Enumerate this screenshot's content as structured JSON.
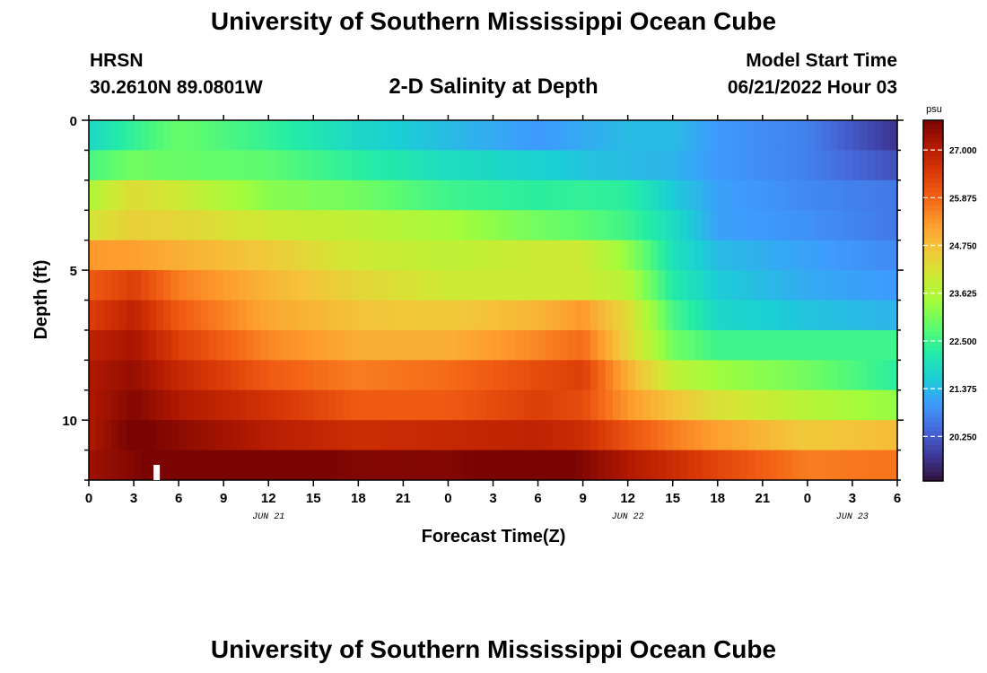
{
  "header": {
    "title": "University of Southern Mississippi Ocean Cube",
    "station": "HRSN",
    "coords": "30.2610N  89.0801W",
    "plot_title": "2-D Salinity at Depth",
    "model_start_label": "Model Start Time",
    "model_start_value": "06/21/2022 Hour 03"
  },
  "footer": {
    "title": "University of Southern Mississippi Ocean Cube"
  },
  "chart_data": {
    "type": "heatmap",
    "title": "2-D Salinity at Depth",
    "xlabel": "Forecast Time(Z)",
    "ylabel": "Depth (ft)",
    "x_hours_range": [
      0,
      54
    ],
    "x_tick_hours": [
      0,
      3,
      6,
      9,
      12,
      15,
      18,
      21,
      24,
      27,
      30,
      33,
      36,
      39,
      42,
      45,
      48,
      51,
      54
    ],
    "x_tick_labels": [
      "0",
      "3",
      "6",
      "9",
      "12",
      "15",
      "18",
      "21",
      "0",
      "3",
      "6",
      "9",
      "12",
      "15",
      "18",
      "21",
      "0",
      "3",
      "6"
    ],
    "date_labels": [
      {
        "hour": 12,
        "text": "JUN 21"
      },
      {
        "hour": 36,
        "text": "JUN 22"
      },
      {
        "hour": 51,
        "text": "JUN 23"
      }
    ],
    "ylim": [
      0,
      12
    ],
    "y_major_ticks": [
      0,
      5,
      10
    ],
    "y_tick_labels": [
      "0",
      "5",
      "10"
    ],
    "depth_levels": [
      0.5,
      1.5,
      2.5,
      3.5,
      4.5,
      5.5,
      6.5,
      7.5,
      8.5,
      9.5,
      10.5,
      11.5
    ],
    "key_hours": [
      0,
      3,
      6,
      12,
      18,
      24,
      30,
      33,
      36,
      39,
      42,
      48,
      54
    ],
    "salinity_psu": [
      [
        21.8,
        22.4,
        22.9,
        22.4,
        21.8,
        21.4,
        21.0,
        21.2,
        21.4,
        21.4,
        21.0,
        20.7,
        19.7
      ],
      [
        22.6,
        23.0,
        22.9,
        22.8,
        22.3,
        21.9,
        21.7,
        21.5,
        21.4,
        21.3,
        21.0,
        20.7,
        20.1
      ],
      [
        23.6,
        24.3,
        24.0,
        23.2,
        23.0,
        22.5,
        22.3,
        22.4,
        22.3,
        21.6,
        21.1,
        20.8,
        20.6
      ],
      [
        24.1,
        24.5,
        24.4,
        24.0,
        23.8,
        23.5,
        23.0,
        22.8,
        22.5,
        21.9,
        21.1,
        20.9,
        20.6
      ],
      [
        25.3,
        25.2,
        25.0,
        24.6,
        24.0,
        23.8,
        24.0,
        24.0,
        23.3,
        22.0,
        21.4,
        21.1,
        20.8
      ],
      [
        26.0,
        26.4,
        25.6,
        24.9,
        24.4,
        24.0,
        24.0,
        24.0,
        23.7,
        22.2,
        21.6,
        21.2,
        21.0
      ],
      [
        26.4,
        26.9,
        26.0,
        25.1,
        24.7,
        24.6,
        24.9,
        25.3,
        24.3,
        22.6,
        21.8,
        21.5,
        21.3
      ],
      [
        26.9,
        27.2,
        26.4,
        25.5,
        25.0,
        25.0,
        25.5,
        25.8,
        24.4,
        23.0,
        22.5,
        22.5,
        22.5
      ],
      [
        27.1,
        27.4,
        26.8,
        26.0,
        25.6,
        25.8,
        26.2,
        26.4,
        25.0,
        23.8,
        23.4,
        23.0,
        22.3
      ],
      [
        27.1,
        27.6,
        27.1,
        26.6,
        26.0,
        26.0,
        26.4,
        26.2,
        25.3,
        24.7,
        24.2,
        23.7,
        23.3
      ],
      [
        27.1,
        27.8,
        27.5,
        27.0,
        26.7,
        26.8,
        26.9,
        26.7,
        26.1,
        25.6,
        25.2,
        24.6,
        24.8
      ],
      [
        27.3,
        27.6,
        28.2,
        27.9,
        27.6,
        27.6,
        28.0,
        27.6,
        27.1,
        26.7,
        26.3,
        25.6,
        25.7
      ]
    ],
    "colorbar": {
      "unit": "psu",
      "vmin": 19.2,
      "vmax": 27.7,
      "ticks": [
        27.0,
        25.875,
        24.75,
        23.625,
        22.5,
        21.375,
        20.25
      ],
      "tick_labels": [
        "27.000",
        "25.875",
        "24.750",
        "23.625",
        "22.500",
        "21.375",
        "20.250"
      ]
    },
    "colormap": [
      "#30123b",
      "#3e3a9b",
      "#4669db",
      "#3e9bfe",
      "#1bcfd4",
      "#24eca6",
      "#61fc6c",
      "#a4fc3b",
      "#d1e834",
      "#f3c63a",
      "#fe9b2d",
      "#f36315",
      "#d93806",
      "#b11901",
      "#7a0402"
    ],
    "marker_hour": 4.5,
    "grid": false,
    "legend": "right"
  }
}
